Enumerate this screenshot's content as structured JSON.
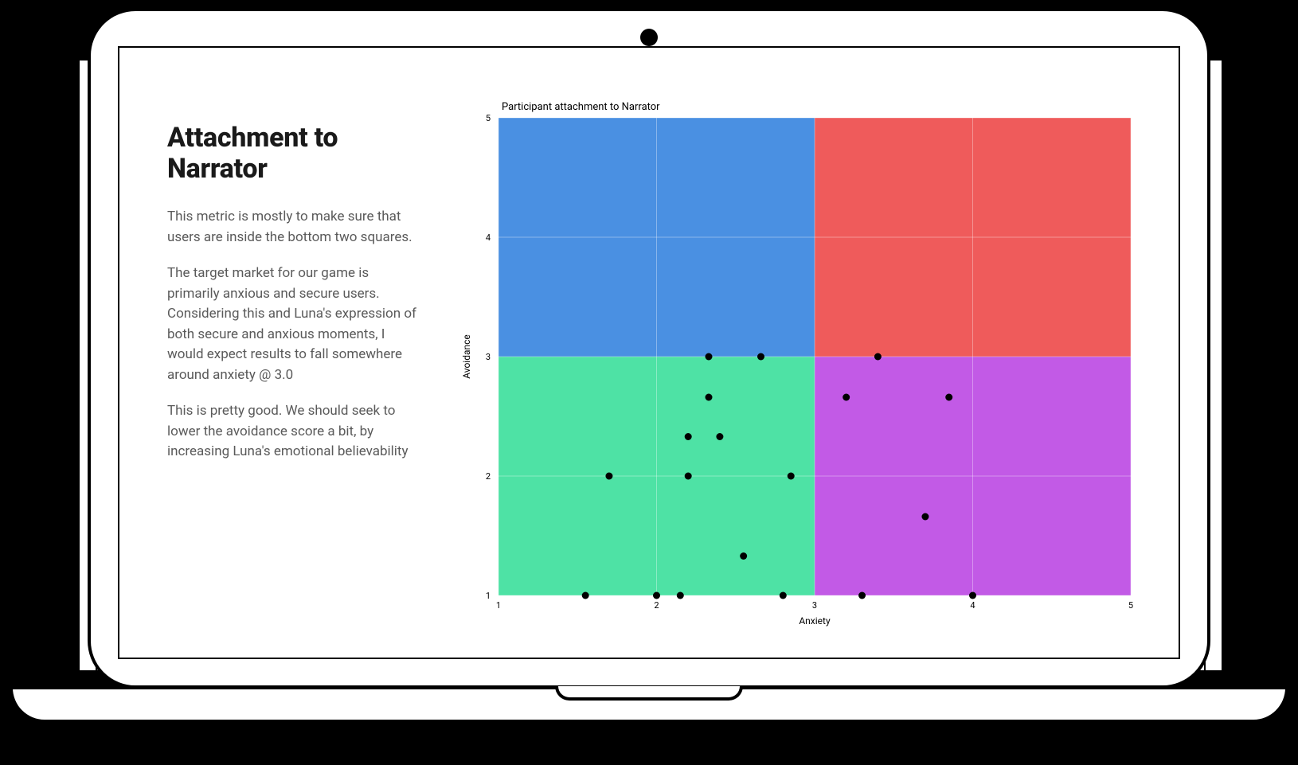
{
  "text": {
    "heading": "Attachment to Narrator",
    "p1": "This metric is mostly to make sure that users are inside the bottom two squares.",
    "p2": "The target market for our game is primarily anxious and secure users. Considering this and Luna's expression of both secure and anxious moments, I would expect results to fall somewhere around anxiety @ 3.0",
    "p3": "This is pretty good. We should seek to lower the avoidance score a bit, by increasing Luna's emotional believability"
  },
  "chart": {
    "type": "scatter-quadrant",
    "title": "Participant attachment to Narrator",
    "xlabel": "Anxiety",
    "ylabel": "Avoidance",
    "xlim": [
      1,
      5
    ],
    "ylim": [
      1,
      5
    ],
    "x_ticks": [
      1,
      2,
      3,
      4,
      5
    ],
    "y_ticks": [
      1,
      2,
      3,
      4,
      5
    ],
    "quadrant_split_x": 3,
    "quadrant_split_y": 3,
    "quadrant_colors": {
      "top_left": "#4a90e2",
      "top_right": "#ef5b5b",
      "bottom_left": "#4ee2a5",
      "bottom_right": "#c25ae6"
    },
    "grid_color": "#ffffff",
    "grid_opacity": 0.35,
    "background_color": "#ffffff",
    "point_color": "#000000",
    "point_radius": 4.5,
    "title_fontsize": 13,
    "label_fontsize": 12,
    "tick_fontsize": 11,
    "points": [
      {
        "x": 1.55,
        "y": 1.0
      },
      {
        "x": 1.7,
        "y": 2.0
      },
      {
        "x": 2.0,
        "y": 1.0
      },
      {
        "x": 2.15,
        "y": 1.0
      },
      {
        "x": 2.2,
        "y": 2.0
      },
      {
        "x": 2.2,
        "y": 2.33
      },
      {
        "x": 2.33,
        "y": 2.66
      },
      {
        "x": 2.33,
        "y": 3.0
      },
      {
        "x": 2.4,
        "y": 2.33
      },
      {
        "x": 2.55,
        "y": 1.33
      },
      {
        "x": 2.66,
        "y": 3.0
      },
      {
        "x": 2.8,
        "y": 1.0
      },
      {
        "x": 2.85,
        "y": 2.0
      },
      {
        "x": 3.2,
        "y": 2.66
      },
      {
        "x": 3.3,
        "y": 1.0
      },
      {
        "x": 3.4,
        "y": 3.0
      },
      {
        "x": 3.7,
        "y": 1.66
      },
      {
        "x": 3.85,
        "y": 2.66
      },
      {
        "x": 4.0,
        "y": 1.0
      }
    ]
  }
}
